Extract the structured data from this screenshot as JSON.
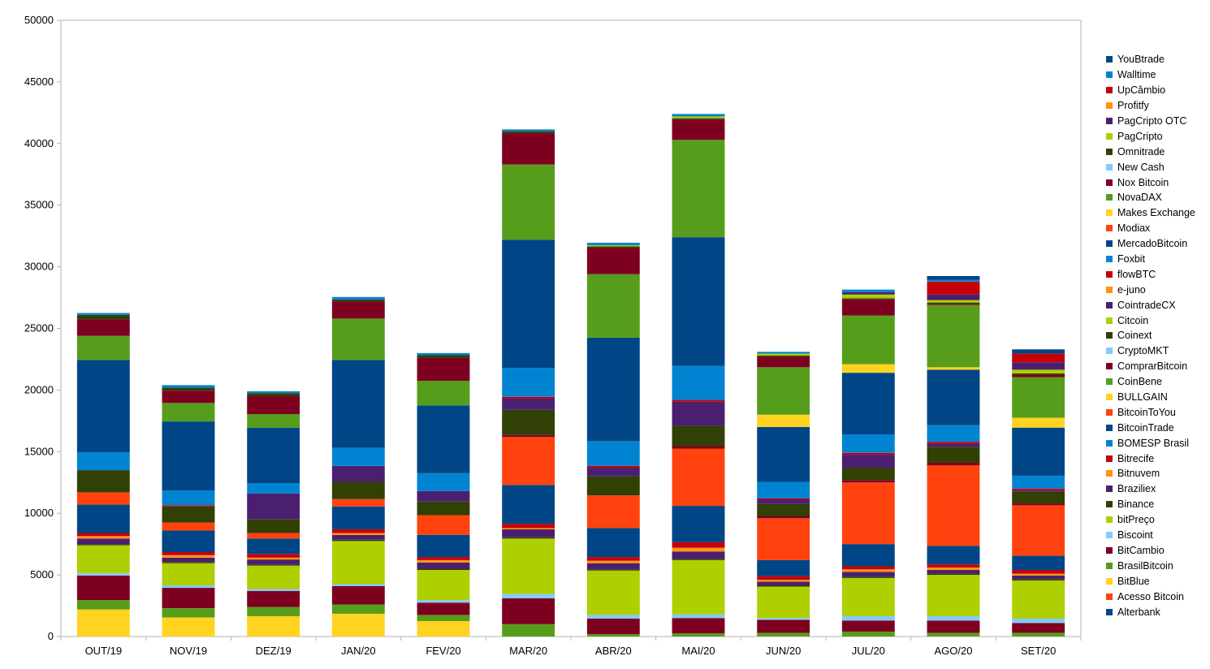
{
  "chart_data": {
    "type": "bar",
    "stacked": true,
    "categories": [
      "OUT/19",
      "NOV/19",
      "DEZ/19",
      "JAN/20",
      "FEV/20",
      "MAR/20",
      "ABR/20",
      "MAI/20",
      "JUN/20",
      "JUL/20",
      "AGO/20",
      "SET/20"
    ],
    "ylim": [
      0,
      50000
    ],
    "yticks": [
      0,
      5000,
      10000,
      15000,
      20000,
      25000,
      30000,
      35000,
      40000,
      45000,
      50000
    ],
    "grid": false,
    "legend_position": "right",
    "series": [
      {
        "name": "Alterbank",
        "color": "#004586",
        "values": [
          0,
          0,
          0,
          0,
          0,
          0,
          0,
          0,
          0,
          0,
          0,
          0
        ]
      },
      {
        "name": "Acesso Bitcoin",
        "color": "#ff420e",
        "values": [
          0,
          0,
          0,
          0,
          0,
          0,
          0,
          0,
          0,
          0,
          0,
          0
        ]
      },
      {
        "name": "BitBlue",
        "color": "#ffd320",
        "values": [
          2200,
          1550,
          1650,
          1850,
          1250,
          0,
          0,
          0,
          0,
          0,
          0,
          0
        ]
      },
      {
        "name": "BrasilBitcoin",
        "color": "#579d1c",
        "values": [
          750,
          750,
          750,
          750,
          500,
          1000,
          200,
          250,
          300,
          400,
          300,
          300
        ]
      },
      {
        "name": "BitCambio",
        "color": "#7e0021",
        "values": [
          2000,
          1650,
          1300,
          1500,
          1000,
          2100,
          1250,
          1250,
          1050,
          900,
          1000,
          800
        ]
      },
      {
        "name": "Biscoint",
        "color": "#83caff",
        "values": [
          200,
          200,
          150,
          150,
          200,
          350,
          300,
          300,
          150,
          350,
          350,
          350
        ]
      },
      {
        "name": "bitPreço",
        "color": "#aecf00",
        "values": [
          2250,
          1800,
          1900,
          3500,
          2450,
          4500,
          3600,
          4400,
          2550,
          3100,
          3350,
          3100
        ]
      },
      {
        "name": "Binance",
        "color": "#314004",
        "values": [
          100,
          100,
          100,
          100,
          100,
          100,
          100,
          100,
          100,
          100,
          100,
          100
        ]
      },
      {
        "name": "Braziliex",
        "color": "#4b1f6f",
        "values": [
          450,
          350,
          400,
          400,
          500,
          650,
          500,
          600,
          300,
          400,
          300,
          300
        ]
      },
      {
        "name": "Bitnuvem",
        "color": "#ff950e",
        "values": [
          200,
          200,
          150,
          150,
          200,
          100,
          200,
          300,
          150,
          200,
          200,
          150
        ]
      },
      {
        "name": "Bitrecife",
        "color": "#c5000b",
        "values": [
          250,
          250,
          300,
          300,
          250,
          350,
          300,
          450,
          300,
          250,
          250,
          300
        ]
      },
      {
        "name": "BOMESP Brasil",
        "color": "#0084d1",
        "values": [
          0,
          0,
          0,
          0,
          0,
          0,
          0,
          0,
          0,
          0,
          0,
          0
        ]
      },
      {
        "name": "BitcoinTrade",
        "color": "#004586",
        "values": [
          2300,
          1750,
          1250,
          1850,
          1800,
          3150,
          2350,
          2950,
          1300,
          1800,
          1500,
          1150
        ]
      },
      {
        "name": "BitcoinToYou",
        "color": "#ff420e",
        "values": [
          1000,
          650,
          450,
          600,
          1600,
          3900,
          2650,
          4650,
          3400,
          5000,
          6550,
          4100
        ]
      },
      {
        "name": "BULLGAIN",
        "color": "#ffd320",
        "values": [
          0,
          0,
          0,
          0,
          0,
          0,
          0,
          0,
          0,
          0,
          0,
          0
        ]
      },
      {
        "name": "CoinBene",
        "color": "#579d1c",
        "values": [
          0,
          0,
          0,
          0,
          0,
          0,
          0,
          0,
          0,
          0,
          0,
          0
        ]
      },
      {
        "name": "ComprarBitcoin",
        "color": "#7e0021",
        "values": [
          0,
          0,
          0,
          0,
          0,
          150,
          0,
          200,
          150,
          200,
          200,
          150
        ]
      },
      {
        "name": "CryptoMKT",
        "color": "#83caff",
        "values": [
          0,
          0,
          0,
          0,
          0,
          0,
          0,
          0,
          0,
          0,
          0,
          0
        ]
      },
      {
        "name": "Coinext",
        "color": "#314004",
        "values": [
          1800,
          1300,
          1100,
          1400,
          1100,
          2050,
          1550,
          1650,
          1000,
          1000,
          1300,
          950
        ]
      },
      {
        "name": "Citcoin",
        "color": "#aecf00",
        "values": [
          0,
          0,
          0,
          0,
          0,
          0,
          0,
          0,
          0,
          0,
          0,
          0
        ]
      },
      {
        "name": "CointradeCX",
        "color": "#4b1f6f",
        "values": [
          0,
          0,
          2100,
          1300,
          850,
          900,
          700,
          1950,
          350,
          1050,
          250,
          100
        ]
      },
      {
        "name": "e-juno",
        "color": "#ff950e",
        "values": [
          0,
          0,
          0,
          0,
          0,
          0,
          0,
          0,
          0,
          0,
          0,
          0
        ]
      },
      {
        "name": "flowBTC",
        "color": "#c5000b",
        "values": [
          0,
          100,
          0,
          0,
          0,
          150,
          150,
          150,
          100,
          150,
          150,
          150
        ]
      },
      {
        "name": "Foxbit",
        "color": "#0084d1",
        "values": [
          1450,
          1200,
          850,
          1450,
          1450,
          2350,
          2000,
          2750,
          1350,
          1500,
          1350,
          1050
        ]
      },
      {
        "name": "MercadoBitcoin",
        "color": "#004586",
        "values": [
          7500,
          5600,
          4500,
          7150,
          5500,
          10400,
          8400,
          10450,
          4450,
          5000,
          4500,
          3900
        ]
      },
      {
        "name": "Modiax",
        "color": "#ff420e",
        "values": [
          0,
          0,
          0,
          0,
          0,
          0,
          0,
          0,
          0,
          0,
          0,
          0
        ]
      },
      {
        "name": "Makes Exchange",
        "color": "#ffd320",
        "values": [
          0,
          0,
          0,
          0,
          0,
          0,
          0,
          0,
          1000,
          700,
          200,
          800
        ]
      },
      {
        "name": "NovaDAX",
        "color": "#579d1c",
        "values": [
          1950,
          1500,
          1100,
          3350,
          2000,
          6100,
          5150,
          7900,
          3850,
          3950,
          5050,
          3300
        ]
      },
      {
        "name": "Nox Bitcoin",
        "color": "#7e0021",
        "values": [
          1350,
          1000,
          1450,
          1400,
          1850,
          2550,
          2150,
          1650,
          850,
          1300,
          100,
          200
        ]
      },
      {
        "name": "New Cash",
        "color": "#83caff",
        "values": [
          0,
          0,
          0,
          0,
          0,
          0,
          0,
          0,
          0,
          0,
          0,
          0
        ]
      },
      {
        "name": "Omnitrade",
        "color": "#314004",
        "values": [
          350,
          250,
          250,
          150,
          250,
          150,
          100,
          100,
          100,
          100,
          100,
          100
        ]
      },
      {
        "name": "PagCripto",
        "color": "#aecf00",
        "values": [
          0,
          0,
          0,
          0,
          0,
          0,
          100,
          150,
          150,
          300,
          200,
          300
        ]
      },
      {
        "name": "PagCripto OTC",
        "color": "#4b1f6f",
        "values": [
          0,
          0,
          0,
          0,
          0,
          0,
          0,
          0,
          0,
          200,
          450,
          600
        ]
      },
      {
        "name": "Profitfy",
        "color": "#ff950e",
        "values": [
          0,
          0,
          0,
          0,
          0,
          0,
          0,
          0,
          0,
          0,
          0,
          0
        ]
      },
      {
        "name": "UpCâmbio",
        "color": "#c5000b",
        "values": [
          0,
          0,
          0,
          0,
          0,
          0,
          0,
          0,
          0,
          0,
          1050,
          700
        ]
      },
      {
        "name": "Walltime",
        "color": "#0084d1",
        "values": [
          150,
          200,
          150,
          200,
          150,
          150,
          200,
          200,
          150,
          200,
          150,
          0
        ]
      },
      {
        "name": "YouBtrade",
        "color": "#004586",
        "values": [
          0,
          0,
          0,
          0,
          0,
          0,
          0,
          0,
          0,
          0,
          300,
          350
        ]
      }
    ]
  }
}
